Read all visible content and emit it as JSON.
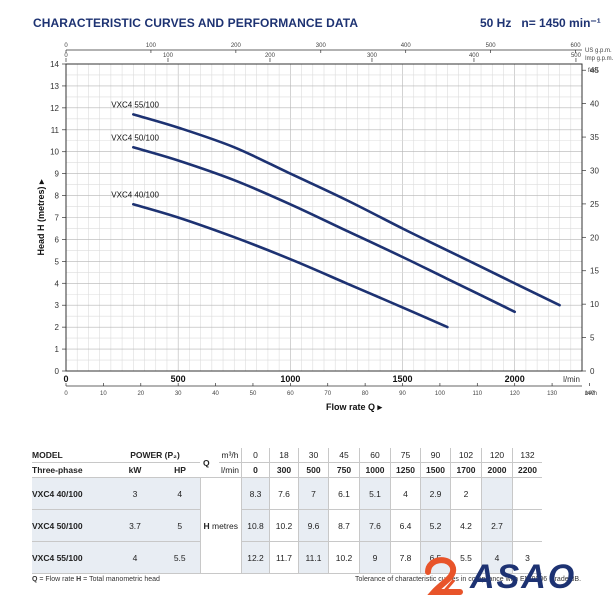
{
  "header": {
    "title": "CHARACTERISTIC CURVES AND PERFORMANCE DATA",
    "freq": "50 Hz",
    "speed": "n= 1450 min⁻¹"
  },
  "chart_data": {
    "type": "line",
    "xlabel": "Flow rate Q",
    "ylabel": "Head H (metres)",
    "x_unit": "l/min",
    "xlim": [
      0,
      2300
    ],
    "ylim": [
      0,
      14
    ],
    "y_ticks": [
      0,
      1,
      2,
      3,
      4,
      5,
      6,
      7,
      8,
      9,
      10,
      11,
      12,
      13,
      14
    ],
    "x_ticks_lmin": [
      0,
      500,
      1000,
      1500,
      2000
    ],
    "secondary_axes": {
      "us_gpm": {
        "label": "US g.p.m.",
        "ticks": [
          0,
          100,
          200,
          300,
          400,
          500,
          600
        ]
      },
      "imp_gpm": {
        "label": "Imp g.p.m.",
        "ticks": [
          0,
          100,
          200,
          300,
          400,
          500
        ]
      },
      "m3h": {
        "label": "m³/h",
        "ticks": [
          0,
          10,
          20,
          30,
          40,
          50,
          60,
          70,
          80,
          90,
          100,
          110,
          120,
          130,
          140
        ]
      },
      "feet": {
        "label": "feet",
        "ticks": [
          0,
          5,
          10,
          15,
          20,
          25,
          30,
          35,
          40,
          45
        ]
      }
    },
    "series": [
      {
        "name": "VXC4 40/100",
        "x": [
          300,
          500,
          750,
          1000,
          1250,
          1500,
          1700
        ],
        "y": [
          7.6,
          7.0,
          6.1,
          5.1,
          4.0,
          2.9,
          2.0
        ]
      },
      {
        "name": "VXC4 50/100",
        "x": [
          300,
          500,
          750,
          1000,
          1250,
          1500,
          1700,
          2000
        ],
        "y": [
          10.2,
          9.6,
          8.7,
          7.6,
          6.4,
          5.2,
          4.2,
          2.7
        ]
      },
      {
        "name": "VXC4 55/100",
        "x": [
          300,
          500,
          750,
          1000,
          1250,
          1500,
          1700,
          2000,
          2200
        ],
        "y": [
          11.7,
          11.1,
          10.2,
          9.0,
          7.8,
          6.5,
          5.5,
          4.0,
          3.0
        ]
      }
    ]
  },
  "table": {
    "model": "MODEL",
    "power": "POWER (P₂)",
    "three_phase": "Three-phase",
    "kw": "kW",
    "hp": "HP",
    "q": "Q",
    "q_unit1": "m³/h",
    "q_unit2": "l/min",
    "h": "H",
    "h_unit": "metres",
    "m3h": [
      "0",
      "18",
      "30",
      "45",
      "60",
      "75",
      "90",
      "102",
      "120",
      "132"
    ],
    "lmin": [
      "0",
      "300",
      "500",
      "750",
      "1000",
      "1250",
      "1500",
      "1700",
      "2000",
      "2200"
    ],
    "rows": [
      {
        "model": "VXC4 40/100",
        "kw": "3",
        "hp": "4",
        "h": [
          "8.3",
          "7.6",
          "7",
          "6.1",
          "5.1",
          "4",
          "2.9",
          "2",
          "",
          ""
        ]
      },
      {
        "model": "VXC4 50/100",
        "kw": "3.7",
        "hp": "5",
        "h": [
          "10.8",
          "10.2",
          "9.6",
          "8.7",
          "7.6",
          "6.4",
          "5.2",
          "4.2",
          "2.7",
          ""
        ]
      },
      {
        "model": "VXC4 55/100",
        "kw": "4",
        "hp": "5.5",
        "h": [
          "12.2",
          "11.7",
          "11.1",
          "10.2",
          "9",
          "7.8",
          "6.5",
          "5.5",
          "4",
          "3"
        ]
      }
    ]
  },
  "footer": {
    "q_key": "Q",
    "q_def": " = Flow rate  ",
    "h_key": "H",
    "h_def": " = Total manometric head",
    "tolerance": "Tolerance of characteristic curves in compliance with EN 9906 Grade 3B."
  },
  "logo": {
    "text": "ASAO",
    "color": "#1d3272",
    "accent": "#e8542a"
  }
}
